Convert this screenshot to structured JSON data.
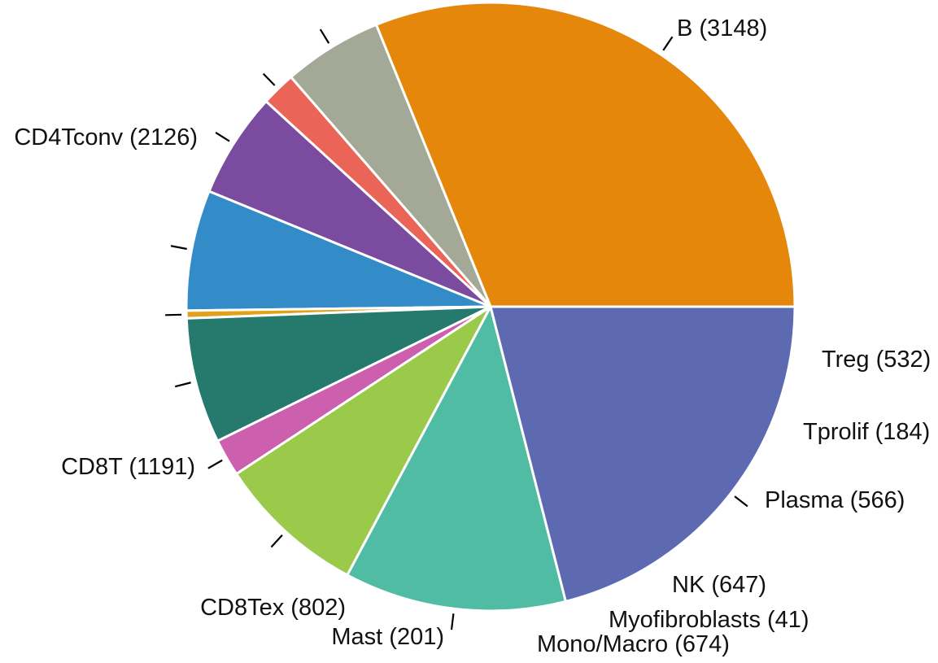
{
  "chart_data": {
    "type": "pie",
    "slices": [
      {
        "label": "B (3148)",
        "value": 3148,
        "color": "#e5870a"
      },
      {
        "label": "Treg (532)",
        "value": 532,
        "color": "#a3a897"
      },
      {
        "label": "Tprolif (184)",
        "value": 184,
        "color": "#ea6458"
      },
      {
        "label": "Plasma (566)",
        "value": 566,
        "color": "#7a4b9e"
      },
      {
        "label": "NK (647)",
        "value": 647,
        "color": "#338bc7"
      },
      {
        "label": "Myofibroblasts (41)",
        "value": 41,
        "color": "#e0a21a"
      },
      {
        "label": "Mono/Macro (674)",
        "value": 674,
        "color": "#25796d"
      },
      {
        "label": "Mast (201)",
        "value": 201,
        "color": "#cc60ae"
      },
      {
        "label": "CD8Tex (802)",
        "value": 802,
        "color": "#9bc94a"
      },
      {
        "label": "CD8T (1191)",
        "value": 1191,
        "color": "#50bca3"
      },
      {
        "label": "CD4Tconv (2126)",
        "value": 2126,
        "color": "#5d69b1"
      }
    ]
  }
}
